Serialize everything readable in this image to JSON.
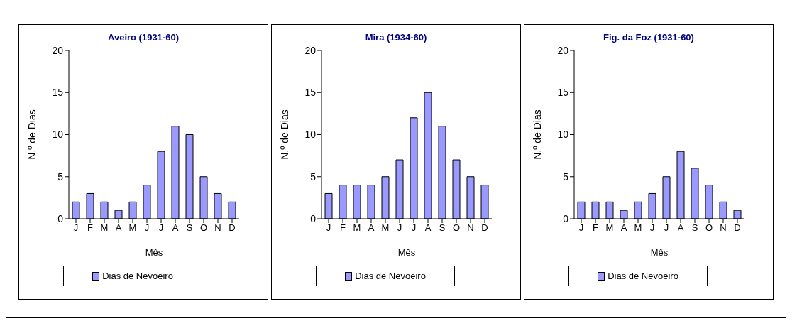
{
  "chart_data": [
    {
      "type": "bar",
      "title": "Aveiro (1931-60)",
      "xlabel": "Mês",
      "ylabel": "N.º de Dias",
      "categories": [
        "J",
        "F",
        "M",
        "A",
        "M",
        "J",
        "J",
        "A",
        "S",
        "O",
        "N",
        "D"
      ],
      "series": [
        {
          "name": "Dias de Nevoeiro",
          "color": "#9999ff",
          "values": [
            2,
            3,
            2,
            1,
            2,
            4,
            8,
            11,
            10,
            5,
            3,
            2
          ]
        }
      ],
      "ylim": [
        0,
        20
      ],
      "yticks": [
        0,
        5,
        10,
        15,
        20
      ],
      "grid": false,
      "legend": "bottom"
    },
    {
      "type": "bar",
      "title": "Mira (1934-60)",
      "xlabel": "Mês",
      "ylabel": "N.º de Dias",
      "categories": [
        "J",
        "F",
        "M",
        "A",
        "M",
        "J",
        "J",
        "A",
        "S",
        "O",
        "N",
        "D"
      ],
      "series": [
        {
          "name": "Dias de Nevoeiro",
          "color": "#9999ff",
          "values": [
            3,
            4,
            4,
            4,
            5,
            7,
            12,
            15,
            11,
            7,
            5,
            4
          ]
        }
      ],
      "ylim": [
        0,
        20
      ],
      "yticks": [
        0,
        5,
        10,
        15,
        20
      ],
      "grid": false,
      "legend": "bottom"
    },
    {
      "type": "bar",
      "title": "Fig. da Foz (1931-60)",
      "xlabel": "Mês",
      "ylabel": "N.º de Dias",
      "categories": [
        "J",
        "F",
        "M",
        "A",
        "M",
        "J",
        "J",
        "A",
        "S",
        "O",
        "N",
        "D"
      ],
      "series": [
        {
          "name": "Dias de Nevoeiro",
          "color": "#9999ff",
          "values": [
            2,
            2,
            2,
            1,
            2,
            3,
            5,
            8,
            6,
            4,
            2,
            1
          ]
        }
      ],
      "ylim": [
        0,
        20
      ],
      "yticks": [
        0,
        5,
        10,
        15,
        20
      ],
      "grid": false,
      "legend": "bottom"
    }
  ]
}
